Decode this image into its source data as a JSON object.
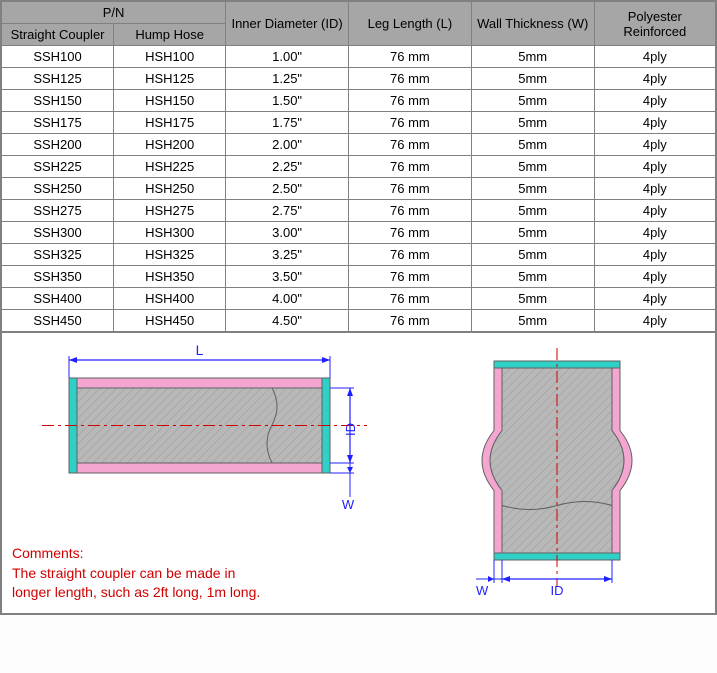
{
  "headers": {
    "pn": "P/N",
    "straight": "Straight Coupler",
    "hump": "Hump Hose",
    "id": "Inner Diameter (ID)",
    "leg": "Leg Length (L)",
    "wall": "Wall Thickness (W)",
    "poly": "Polyester Reinforced"
  },
  "rows": [
    {
      "sc": "SSH100",
      "hh": "HSH100",
      "id": "1.00\"",
      "leg": "76 mm",
      "w": "5mm",
      "p": "4ply"
    },
    {
      "sc": "SSH125",
      "hh": "HSH125",
      "id": "1.25\"",
      "leg": "76 mm",
      "w": "5mm",
      "p": "4ply"
    },
    {
      "sc": "SSH150",
      "hh": "HSH150",
      "id": "1.50\"",
      "leg": "76 mm",
      "w": "5mm",
      "p": "4ply"
    },
    {
      "sc": "SSH175",
      "hh": "HSH175",
      "id": "1.75\"",
      "leg": "76 mm",
      "w": "5mm",
      "p": "4ply"
    },
    {
      "sc": "SSH200",
      "hh": "HSH200",
      "id": "2.00\"",
      "leg": "76 mm",
      "w": "5mm",
      "p": "4ply"
    },
    {
      "sc": "SSH225",
      "hh": "HSH225",
      "id": "2.25\"",
      "leg": "76 mm",
      "w": "5mm",
      "p": "4ply"
    },
    {
      "sc": "SSH250",
      "hh": "HSH250",
      "id": "2.50\"",
      "leg": "76 mm",
      "w": "5mm",
      "p": "4ply"
    },
    {
      "sc": "SSH275",
      "hh": "HSH275",
      "id": "2.75\"",
      "leg": "76 mm",
      "w": "5mm",
      "p": "4ply"
    },
    {
      "sc": "SSH300",
      "hh": "HSH300",
      "id": "3.00\"",
      "leg": "76 mm",
      "w": "5mm",
      "p": "4ply"
    },
    {
      "sc": "SSH325",
      "hh": "HSH325",
      "id": "3.25\"",
      "leg": "76 mm",
      "w": "5mm",
      "p": "4ply"
    },
    {
      "sc": "SSH350",
      "hh": "HSH350",
      "id": "3.50\"",
      "leg": "76 mm",
      "w": "5mm",
      "p": "4ply"
    },
    {
      "sc": "SSH400",
      "hh": "HSH400",
      "id": "4.00\"",
      "leg": "76 mm",
      "w": "5mm",
      "p": "4ply"
    },
    {
      "sc": "SSH450",
      "hh": "HSH450",
      "id": "4.50\"",
      "leg": "76 mm",
      "w": "5mm",
      "p": "4ply"
    }
  ],
  "diagram": {
    "labels": {
      "L": "L",
      "ID": "ID",
      "W": "W"
    },
    "colors": {
      "dim": "#2020ff",
      "center": "#d00000",
      "pink": "#f4a6d0",
      "teal": "#2fd0c8",
      "body": "#b8b8b8",
      "hatch": "#9a9a9a",
      "outline": "#606060"
    }
  },
  "comments": {
    "title": "Comments:",
    "line1": "The straight coupler can be made in",
    "line2": "longer length, such as 2ft long, 1m long."
  }
}
